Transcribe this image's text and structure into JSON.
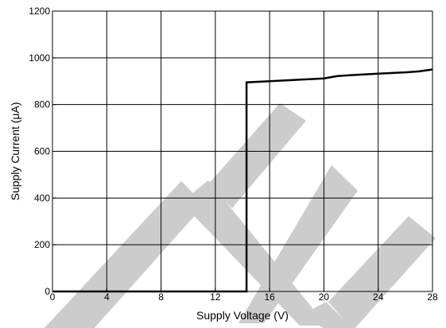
{
  "chart_data": {
    "type": "line",
    "xlabel": "Supply Voltage (V)",
    "ylabel": "Supply Current (μA)",
    "xlim": [
      0,
      28
    ],
    "ylim": [
      0,
      1200
    ],
    "x_ticks": [
      0,
      4,
      8,
      12,
      16,
      20,
      24,
      28
    ],
    "y_ticks": [
      0,
      200,
      400,
      600,
      800,
      1000,
      1200
    ],
    "grid": true,
    "series": [
      {
        "x": [
          0,
          14.3,
          14.3,
          16,
          18,
          20,
          21,
          22,
          24,
          26,
          27,
          28
        ],
        "y": [
          0,
          0,
          895,
          900,
          906,
          912,
          922,
          926,
          932,
          938,
          942,
          950
        ]
      }
    ]
  },
  "colors": {
    "line": "#000000",
    "grid": "#000000",
    "watermark": "#cccccc"
  }
}
